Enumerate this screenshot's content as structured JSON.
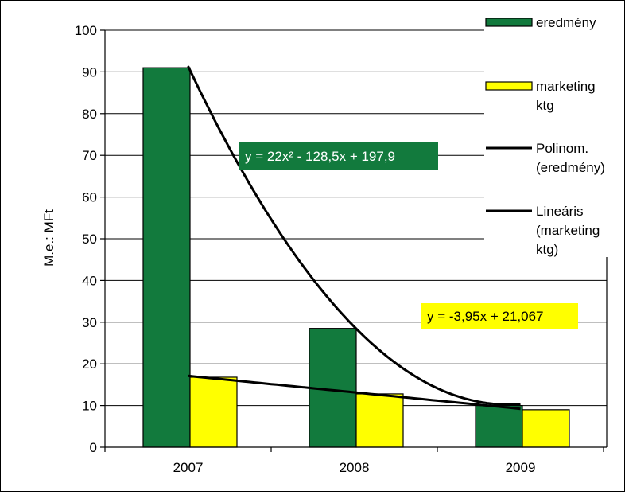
{
  "chart_data": {
    "type": "bar",
    "categories": [
      "2007",
      "2008",
      "2009"
    ],
    "series": [
      {
        "name": "eredmény",
        "values": [
          91,
          28.5,
          10
        ],
        "color": "#127a3d"
      },
      {
        "name": "marketing ktg",
        "values": [
          16.8,
          12.8,
          9.0
        ],
        "color": "#ffff00"
      }
    ],
    "trendlines": [
      {
        "name": "Polinom. (eredmény)",
        "kind": "polynomial",
        "coefficients": [
          22,
          -128.5,
          197.9
        ],
        "color": "#000000"
      },
      {
        "name": "Lineáris (marketing ktg)",
        "kind": "linear",
        "coefficients": [
          -3.95,
          21.067
        ],
        "color": "#000000"
      }
    ],
    "annotations": [
      {
        "text": "y = 22x² - 128,5x + 197,9",
        "background": "#127a3d",
        "text_color": "#ffffff"
      },
      {
        "text": "y = -3,95x + 21,067",
        "background": "#ffff00",
        "text_color": "#000000"
      }
    ],
    "ylabel": "M.e.: MFt",
    "xlabel": "",
    "title": "",
    "ylim": [
      0,
      100
    ],
    "yticks": [
      0,
      10,
      20,
      30,
      40,
      50,
      60,
      70,
      80,
      90,
      100
    ],
    "grid": true,
    "legend": {
      "position": "right",
      "labels": [
        [
          "eredmény"
        ],
        [
          "marketing",
          "ktg"
        ],
        [
          "Polinom.",
          "(eredmény)"
        ],
        [
          "Lineáris",
          "(marketing",
          "ktg)"
        ]
      ]
    }
  }
}
